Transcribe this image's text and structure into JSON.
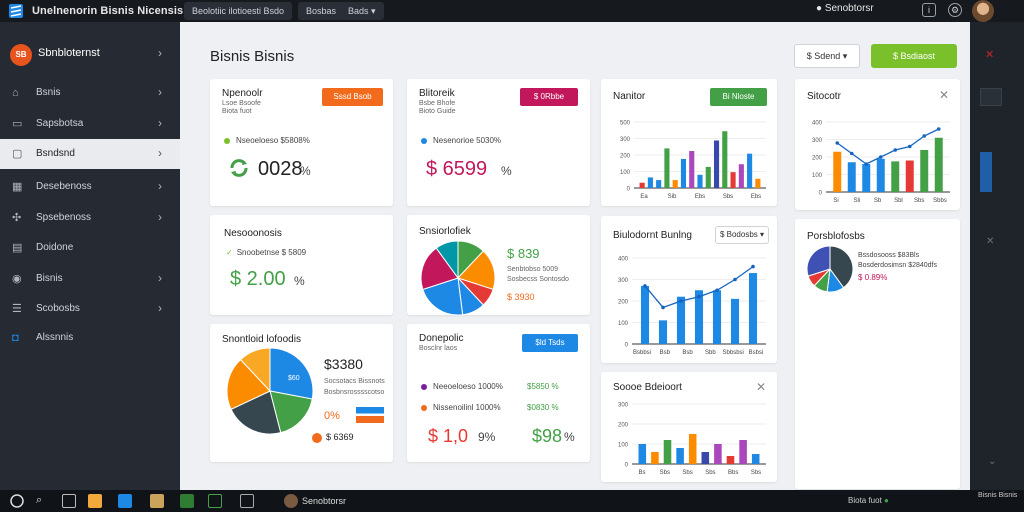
{
  "app": {
    "title": "Unelnenorin Bisnis Nicensis",
    "tabs": [
      {
        "label": "Beolotiic ilotioesti Bsdo"
      },
      {
        "label": "Bosbas"
      },
      {
        "label": "Bads"
      }
    ],
    "user": "Senobtorsr"
  },
  "sidebar": {
    "brand_icon": "SB",
    "brand": "Sbnbloternst",
    "items": [
      {
        "label": "Bsnis",
        "icon": "home-icon"
      },
      {
        "label": "Sapsbotsa",
        "icon": "folder-icon"
      },
      {
        "label": "Bsndsnd",
        "icon": "doc-icon"
      },
      {
        "label": "Desebenoss",
        "icon": "grid-icon"
      },
      {
        "label": "Spsebenoss",
        "icon": "puzzle-icon"
      },
      {
        "label": "Doidone",
        "icon": "file-icon"
      },
      {
        "label": "Bisnis",
        "icon": "globe-icon"
      },
      {
        "label": "Scobosbs",
        "icon": "list-icon"
      },
      {
        "label": "Alssnnis",
        "icon": "box-icon"
      }
    ]
  },
  "page": {
    "title": "Bisnis Bisnis",
    "dropdown": "$ Sdend",
    "primary_button": "$ Bsdiaost"
  },
  "cards": {
    "c1": {
      "title": "Npenoolr",
      "sub1": "Lsoe Bsoofe",
      "sub2": "Biota fuot",
      "button": "Sssd Bsob",
      "legend": "Nseoeloeso $5808%",
      "value": "0028",
      "pct": "%"
    },
    "c2": {
      "title": "Blitoreik",
      "sub1": "Bsbe Bhofe",
      "sub2": "Bioto Guide",
      "button": "$ 0Rbbe",
      "legend": "Nesenorioe 5030%",
      "value": "$ 6599",
      "pct": "%"
    },
    "c3": {
      "title": "Nanitor",
      "button": "Bi Nloste"
    },
    "c4": {
      "title": "Sitocotr"
    },
    "c5": {
      "title": "Nesooonosis",
      "legend": "Snoobetnse $ 5809",
      "value": "$ 2.00",
      "pct": "%"
    },
    "c6": {
      "title": "Snsiorlofiek",
      "price": "$ 839",
      "l1": "Senbtobso 5009",
      "l2": "Sosbecss Sontosdo",
      "l3": "$ 3930"
    },
    "c7": {
      "title": "Biulodornt Bunlng",
      "dropdown": "$ Bodosbs"
    },
    "c8": {
      "title": "Porsblofosbs",
      "l1": "Bssdosooss $83Bls",
      "l2": "Bosderdosimsn $2840dfs",
      "l3": "$ 0.89%"
    },
    "c9": {
      "title": "Snontloid lofoodis",
      "value": "$3380",
      "l1": "Socsotacs Bissnots",
      "l2": "Bosbnsrosssscotso",
      "l3": "0%",
      "l4": "$ 6369",
      "pie_label": "$60"
    },
    "c10": {
      "title": "Donepolic",
      "sub": "Bosclnr laos",
      "button": "$ld Tsds",
      "l1": "Neeoeloeso 1000%",
      "l1v": "$5850 %",
      "l2": "Nissenoilinl 1000%",
      "l2v": "$0830 %",
      "value1": "$ 1,0",
      "value1pct": "9%",
      "value2": "$98",
      "value2pct": "%"
    },
    "c11": {
      "title": "Soooe Bdeioort"
    }
  },
  "chart_data": [
    {
      "type": "bar",
      "title": "Nanitor",
      "ylim": [
        0,
        500
      ],
      "yticks": [
        "0",
        "100",
        "200",
        "300",
        "500"
      ],
      "categories": [
        "",
        "",
        "",
        "",
        "",
        "",
        "",
        "",
        "",
        "",
        "",
        "",
        "",
        "",
        ""
      ],
      "xticklabels": [
        "Ea",
        "Sib",
        "Ebs",
        "Sbs",
        "Ebs"
      ],
      "values": [
        40,
        80,
        60,
        300,
        60,
        220,
        280,
        100,
        160,
        360,
        430,
        120,
        180,
        260,
        70
      ],
      "colors": [
        "#e53935",
        "#1e88e5",
        "#1e88e5",
        "#43a047",
        "#fb8c00",
        "#1e88e5",
        "#ab47bc",
        "#1e88e5",
        "#43a047",
        "#3949ab",
        "#43a047",
        "#e53935",
        "#ab47bc",
        "#1e88e5",
        "#fb8c00"
      ]
    },
    {
      "type": "bar",
      "title": "Sitocotr",
      "ylim": [
        0,
        400
      ],
      "yticks": [
        "0",
        "100",
        "200",
        "300",
        "400"
      ],
      "xticklabels": [
        "Si",
        "Sli",
        "Sb",
        "Sbl",
        "Sbs",
        "Sbbs"
      ],
      "values": [
        230,
        170,
        160,
        190,
        175,
        180,
        240,
        310
      ],
      "colors": [
        "#fb8c00",
        "#1e88e5",
        "#1e88e5",
        "#1e88e5",
        "#43a047",
        "#e53935",
        "#43a047",
        "#43a047"
      ],
      "line": [
        280,
        220,
        160,
        200,
        240,
        260,
        320,
        360
      ]
    },
    {
      "type": "bar",
      "title": "Biulodornt Bunlng",
      "ylim": [
        0,
        400
      ],
      "yticks": [
        "0",
        "100",
        "200",
        "300",
        "400"
      ],
      "xticklabels": [
        "Bsbbsi",
        "Bsb",
        "Bsb",
        "Sbb",
        "Sbbsbsi",
        "Bsbsi"
      ],
      "values": [
        270,
        110,
        220,
        250,
        250,
        210,
        330
      ],
      "colors": [
        "#1e88e5",
        "#1e88e5",
        "#1e88e5",
        "#1e88e5",
        "#1e88e5",
        "#1e88e5",
        "#1e88e5"
      ],
      "line": [
        270,
        170,
        200,
        220,
        250,
        300,
        360
      ]
    },
    {
      "type": "bar",
      "title": "Soooe Bdeioort",
      "ylim": [
        0,
        300
      ],
      "yticks": [
        "0",
        "100",
        "200",
        "300"
      ],
      "xticklabels": [
        "Bs",
        "Sbs",
        "Sbs",
        "Sbs",
        "Bbs",
        "Sbs"
      ],
      "values": [
        100,
        60,
        120,
        80,
        150,
        60,
        100,
        40,
        120,
        50
      ],
      "colors": [
        "#1e88e5",
        "#fb8c00",
        "#43a047",
        "#1e88e5",
        "#fb8c00",
        "#3949ab",
        "#ab47bc",
        "#e53935",
        "#ab47bc",
        "#1e88e5"
      ]
    },
    {
      "type": "pie",
      "title": "Snsiorlofiek",
      "values": [
        12,
        18,
        8,
        10,
        22,
        20,
        10
      ],
      "colors": [
        "#43a047",
        "#fb8c00",
        "#e53935",
        "#1e88e5",
        "#1e88e5",
        "#c2185b",
        "#0097a7"
      ]
    },
    {
      "type": "pie",
      "title": "Snontloid lofoodis",
      "values": [
        28,
        18,
        22,
        20,
        12
      ],
      "colors": [
        "#1e88e5",
        "#43a047",
        "#37474f",
        "#fb8c00",
        "#f9a825"
      ]
    },
    {
      "type": "pie",
      "title": "Porsblofosbs",
      "values": [
        40,
        12,
        10,
        8,
        30
      ],
      "colors": [
        "#37474f",
        "#1e88e5",
        "#43a047",
        "#e53935",
        "#3f51b5"
      ]
    }
  ]
}
